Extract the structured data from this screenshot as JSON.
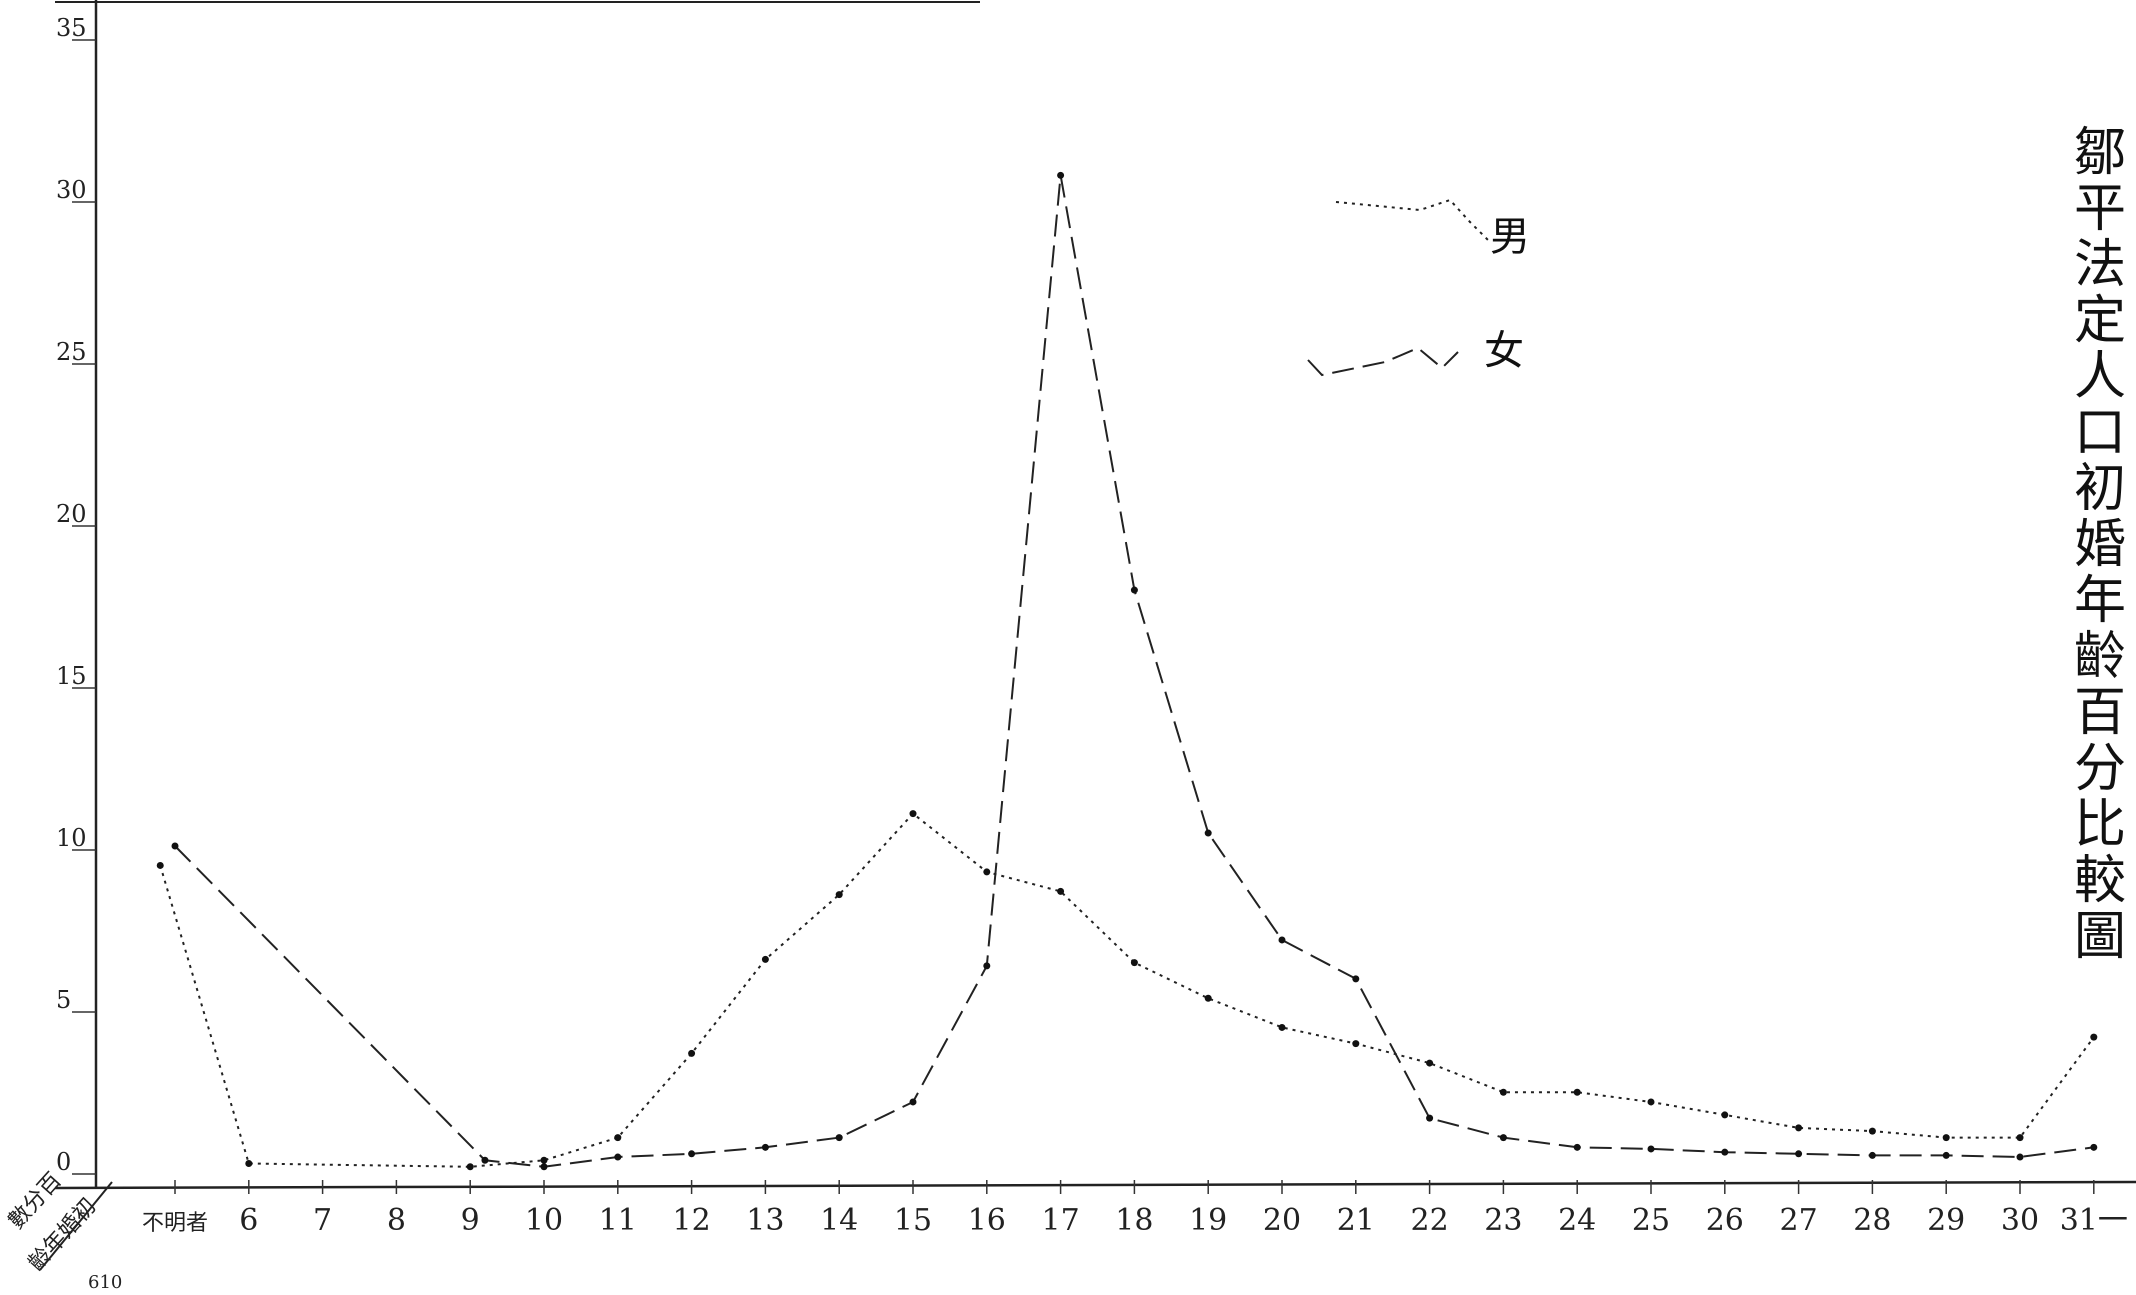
{
  "chart_data": {
    "type": "line",
    "title": "鄒平法定人口初婚年齡百分比較圖",
    "corner_labels": {
      "y": "數分百",
      "x": "齡年婚初",
      "ref": "610"
    },
    "categories": [
      "不明者",
      "6",
      "7",
      "8",
      "9",
      "10",
      "11",
      "12",
      "13",
      "14",
      "15",
      "16",
      "17",
      "18",
      "19",
      "20",
      "21",
      "22",
      "23",
      "24",
      "25",
      "26",
      "27",
      "28",
      "29",
      "30",
      "31一"
    ],
    "yticks": [
      "0",
      "5",
      "10",
      "15",
      "20",
      "25",
      "30",
      "35"
    ],
    "ylim": [
      0,
      38
    ],
    "series": [
      {
        "name": "男",
        "style": "dotted",
        "points": [
          {
            "x": -0.2,
            "y": 9.4
          },
          {
            "x": 1,
            "y": 0.2
          },
          {
            "x": 4,
            "y": 0.1
          },
          {
            "x": 5,
            "y": 0.3
          },
          {
            "x": 6,
            "y": 1.0
          },
          {
            "x": 7,
            "y": 3.6
          },
          {
            "x": 8,
            "y": 6.5
          },
          {
            "x": 9,
            "y": 8.5
          },
          {
            "x": 10,
            "y": 11.0
          },
          {
            "x": 11,
            "y": 9.2
          },
          {
            "x": 12,
            "y": 8.6
          },
          {
            "x": 13,
            "y": 6.4
          },
          {
            "x": 14,
            "y": 5.3
          },
          {
            "x": 15,
            "y": 4.4
          },
          {
            "x": 16,
            "y": 3.9
          },
          {
            "x": 17,
            "y": 3.3
          },
          {
            "x": 18,
            "y": 2.4
          },
          {
            "x": 19,
            "y": 2.4
          },
          {
            "x": 20,
            "y": 2.1
          },
          {
            "x": 21,
            "y": 1.7
          },
          {
            "x": 22,
            "y": 1.3
          },
          {
            "x": 23,
            "y": 1.2
          },
          {
            "x": 24,
            "y": 1.0
          },
          {
            "x": 25,
            "y": 1.0
          },
          {
            "x": 26,
            "y": 4.1
          }
        ]
      },
      {
        "name": "女",
        "style": "dashed",
        "points": [
          {
            "x": 0.0,
            "y": 10.0
          },
          {
            "x": 4.2,
            "y": 0.3
          },
          {
            "x": 5,
            "y": 0.1
          },
          {
            "x": 6,
            "y": 0.4
          },
          {
            "x": 7,
            "y": 0.5
          },
          {
            "x": 8,
            "y": 0.7
          },
          {
            "x": 9,
            "y": 1.0
          },
          {
            "x": 10,
            "y": 2.1
          },
          {
            "x": 11,
            "y": 6.3
          },
          {
            "x": 12,
            "y": 30.7
          },
          {
            "x": 13,
            "y": 17.9
          },
          {
            "x": 14,
            "y": 10.4
          },
          {
            "x": 15,
            "y": 7.1
          },
          {
            "x": 16,
            "y": 5.9
          },
          {
            "x": 17,
            "y": 1.6
          },
          {
            "x": 18,
            "y": 1.0
          },
          {
            "x": 19,
            "y": 0.7
          },
          {
            "x": 20,
            "y": 0.65
          },
          {
            "x": 21,
            "y": 0.55
          },
          {
            "x": 22,
            "y": 0.5
          },
          {
            "x": 23,
            "y": 0.45
          },
          {
            "x": 24,
            "y": 0.45
          },
          {
            "x": 25,
            "y": 0.4
          },
          {
            "x": 26,
            "y": 0.7
          }
        ]
      }
    ],
    "grid": false,
    "legend_position": "top-center"
  }
}
